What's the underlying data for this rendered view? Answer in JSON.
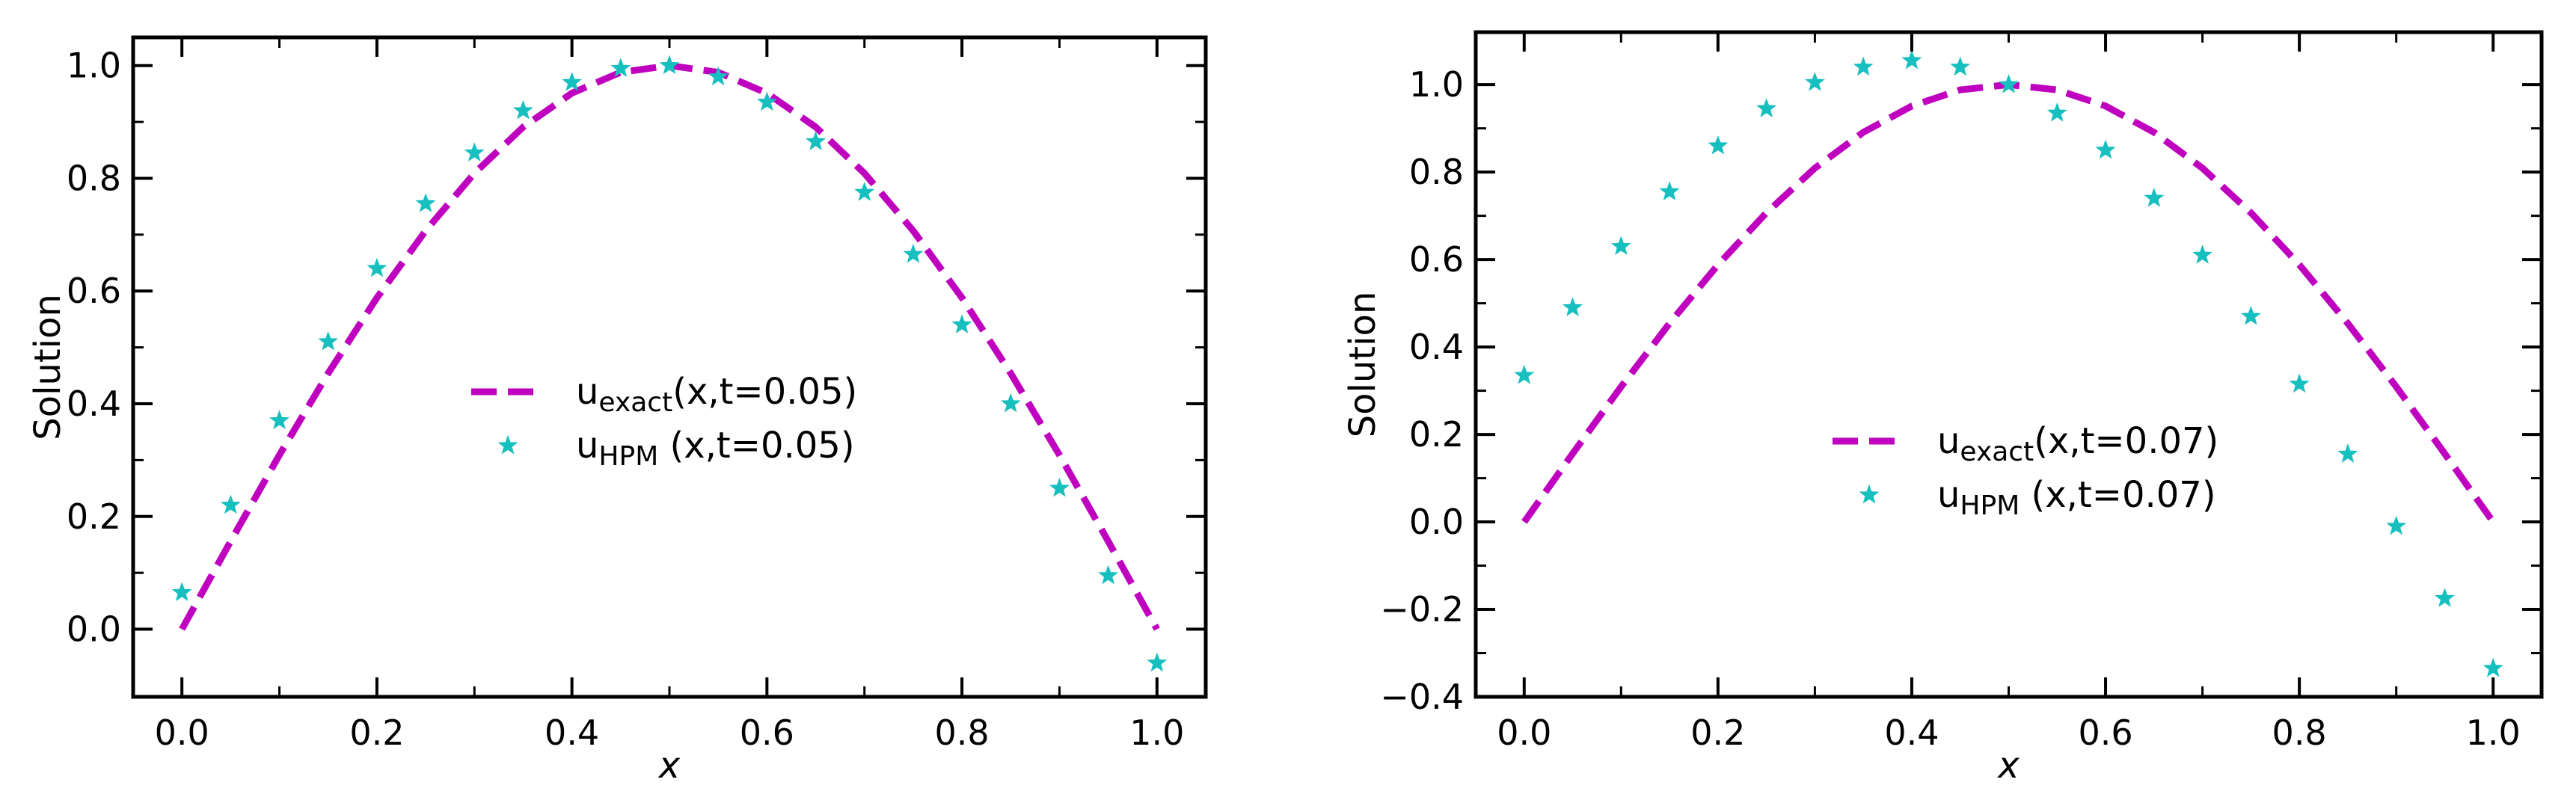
{
  "chart_data": [
    {
      "type": "line+scatter",
      "title": "",
      "xlabel": "x",
      "ylabel": "Solution",
      "xlim": [
        -0.05,
        1.05
      ],
      "ylim": [
        -0.12,
        1.05
      ],
      "xticks": [
        0.0,
        0.2,
        0.4,
        0.6,
        0.8,
        1.0
      ],
      "xtick_labels": [
        "0.0",
        "0.2",
        "0.4",
        "0.6",
        "0.8",
        "1.0"
      ],
      "yticks": [
        0.0,
        0.2,
        0.4,
        0.6,
        0.8,
        1.0
      ],
      "ytick_labels": [
        "0.0",
        "0.2",
        "0.4",
        "0.6",
        "0.8",
        "1.0"
      ],
      "legend_position": "center-right",
      "series": [
        {
          "name": "u_exact(x,t=0.05)",
          "legend_main": "u",
          "legend_sub": "exact",
          "legend_suffix": "(x,t=0.05)",
          "kind": "dashed-line",
          "color": "#bf00bf",
          "x": [
            0.0,
            0.05,
            0.1,
            0.15,
            0.2,
            0.25,
            0.3,
            0.35,
            0.4,
            0.45,
            0.5,
            0.55,
            0.6,
            0.65,
            0.7,
            0.75,
            0.8,
            0.85,
            0.9,
            0.95,
            1.0
          ],
          "y": [
            0.0,
            0.156,
            0.309,
            0.454,
            0.588,
            0.707,
            0.809,
            0.891,
            0.951,
            0.988,
            1.0,
            0.988,
            0.951,
            0.891,
            0.809,
            0.707,
            0.588,
            0.454,
            0.309,
            0.156,
            0.0
          ]
        },
        {
          "name": "u_HPM (x,t=0.05)",
          "legend_main": "u",
          "legend_sub": "HPM",
          "legend_suffix": " (x,t=0.05)",
          "kind": "star-markers",
          "color": "#17bfbf",
          "x": [
            0.0,
            0.05,
            0.1,
            0.15,
            0.2,
            0.25,
            0.3,
            0.35,
            0.4,
            0.45,
            0.5,
            0.55,
            0.6,
            0.65,
            0.7,
            0.75,
            0.8,
            0.85,
            0.9,
            0.95,
            1.0
          ],
          "y": [
            0.065,
            0.22,
            0.37,
            0.51,
            0.64,
            0.755,
            0.845,
            0.92,
            0.97,
            0.995,
            1.0,
            0.98,
            0.935,
            0.865,
            0.775,
            0.665,
            0.54,
            0.4,
            0.25,
            0.095,
            -0.06
          ]
        }
      ]
    },
    {
      "type": "line+scatter",
      "title": "",
      "xlabel": "x",
      "ylabel": "Solution",
      "xlim": [
        -0.05,
        1.05
      ],
      "ylim": [
        -0.4,
        1.12
      ],
      "xticks": [
        0.0,
        0.2,
        0.4,
        0.6,
        0.8,
        1.0
      ],
      "xtick_labels": [
        "0.0",
        "0.2",
        "0.4",
        "0.6",
        "0.8",
        "1.0"
      ],
      "yticks": [
        -0.4,
        -0.2,
        0.0,
        0.2,
        0.4,
        0.6,
        0.8,
        1.0
      ],
      "ytick_labels": [
        "−0.4",
        "−0.2",
        "0.0",
        "0.2",
        "0.4",
        "0.6",
        "0.8",
        "1.0"
      ],
      "legend_position": "center-right",
      "series": [
        {
          "name": "u_exact(x,t=0.07)",
          "legend_main": "u",
          "legend_sub": "exact",
          "legend_suffix": "(x,t=0.07)",
          "kind": "dashed-line",
          "color": "#bf00bf",
          "x": [
            0.0,
            0.05,
            0.1,
            0.15,
            0.2,
            0.25,
            0.3,
            0.35,
            0.4,
            0.45,
            0.5,
            0.55,
            0.6,
            0.65,
            0.7,
            0.75,
            0.8,
            0.85,
            0.9,
            0.95,
            1.0
          ],
          "y": [
            0.0,
            0.156,
            0.309,
            0.454,
            0.588,
            0.707,
            0.809,
            0.891,
            0.951,
            0.988,
            1.0,
            0.988,
            0.951,
            0.891,
            0.809,
            0.707,
            0.588,
            0.454,
            0.309,
            0.156,
            0.0
          ]
        },
        {
          "name": "u_HPM (x,t=0.07)",
          "legend_main": "u",
          "legend_sub": "HPM",
          "legend_suffix": " (x,t=0.07)",
          "kind": "star-markers",
          "color": "#17bfbf",
          "x": [
            0.0,
            0.05,
            0.1,
            0.15,
            0.2,
            0.25,
            0.3,
            0.35,
            0.4,
            0.45,
            0.5,
            0.55,
            0.6,
            0.65,
            0.7,
            0.75,
            0.8,
            0.85,
            0.9,
            0.95,
            1.0
          ],
          "y": [
            0.335,
            0.49,
            0.63,
            0.755,
            0.86,
            0.945,
            1.005,
            1.04,
            1.055,
            1.04,
            1.0,
            0.935,
            0.85,
            0.74,
            0.61,
            0.47,
            0.315,
            0.155,
            -0.01,
            -0.175,
            -0.335
          ]
        }
      ]
    }
  ]
}
